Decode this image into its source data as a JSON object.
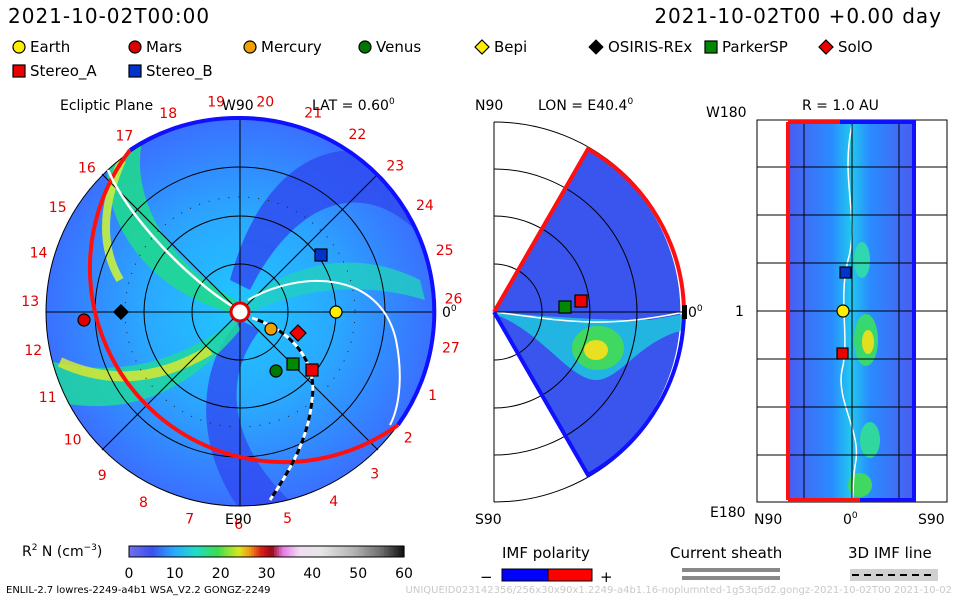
{
  "header": {
    "datetime": "2021-10-02T00:00",
    "datetime_offset": "2021-10-02T00 +0.00 day"
  },
  "legend": {
    "items": [
      {
        "name": "Earth",
        "marker": "circle",
        "color": "#ffee00"
      },
      {
        "name": "Mars",
        "marker": "circle",
        "color": "#dd0000"
      },
      {
        "name": "Mercury",
        "marker": "circle",
        "color": "#f0a000"
      },
      {
        "name": "Venus",
        "marker": "circle",
        "color": "#007700"
      },
      {
        "name": "Bepi",
        "marker": "diamond",
        "color": "#ffee00"
      },
      {
        "name": "OSIRIS-REx",
        "marker": "diamond",
        "color": "#000000"
      },
      {
        "name": "ParkerSP",
        "marker": "square",
        "color": "#008800"
      },
      {
        "name": "SolO",
        "marker": "diamond",
        "color": "#ee0000"
      },
      {
        "name": "Stereo_A",
        "marker": "square",
        "color": "#ee0000"
      },
      {
        "name": "Stereo_B",
        "marker": "square",
        "color": "#0033cc"
      }
    ]
  },
  "ecliptic": {
    "title": "Ecliptic Plane",
    "lat_label": "LAT = 0.60",
    "lat_sup": "0",
    "top_label": "W90",
    "bottom_label": "E90",
    "right_label": "0",
    "right_sup": "0",
    "carrington_numbers": [
      "19",
      "20",
      "21",
      "22",
      "23",
      "24",
      "25",
      "26",
      "27",
      "1",
      "2",
      "3",
      "4",
      "5",
      "6",
      "7",
      "8",
      "9",
      "10",
      "11",
      "12",
      "13",
      "14",
      "15",
      "16",
      "17",
      "18"
    ]
  },
  "meridional": {
    "lon_label": "LON = E40.4",
    "lon_sup": "0",
    "top_label": "N90",
    "bottom_label": "S90",
    "right_label": "0",
    "right_sup": "0"
  },
  "radial": {
    "r_label": "R = 1.0 AU",
    "top_label": "W180",
    "bottom_label": "E180",
    "mid_label": "1",
    "x_left": "N90",
    "x_mid": "0",
    "x_mid_sup": "0",
    "x_right": "S90"
  },
  "colorbar": {
    "label_main": "R",
    "label_sup": "2",
    "label_rest": " N (cm",
    "label_exp": "−3",
    "label_close": ")",
    "ticks": [
      "0",
      "10",
      "20",
      "30",
      "40",
      "50",
      "60"
    ]
  },
  "imf": {
    "title": "IMF polarity",
    "minus": "−",
    "plus": "+",
    "negative_color": "#0000ff",
    "positive_color": "#ff0000"
  },
  "sheath": {
    "title": "Current sheath"
  },
  "imf3d": {
    "title": "3D IMF line"
  },
  "footer": {
    "left": "ENLIL-2.7 lowres-2249-a4b1 WSA_V2.2 GONGZ-2249",
    "right": "UNIQUEID023142356/256x30x90x1.2249-a4b1.16-noplumnted-1g53q5d2.gongz-2021-10-02T00     2021-10-02"
  },
  "chart_data": [
    {
      "type": "heatmap",
      "panel": "ecliptic-plane",
      "title": "Ecliptic Plane",
      "subtitle": "LAT = 0.60°",
      "bodies_au_angle_deg": [
        {
          "name": "Earth",
          "r": 1.0,
          "angle": 0
        },
        {
          "name": "Mars",
          "r": 1.65,
          "angle": 180
        },
        {
          "name": "Mercury",
          "r": 0.33,
          "angle": -40
        },
        {
          "name": "Venus",
          "r": 0.71,
          "angle": -63
        },
        {
          "name": "Bepi",
          "r": 0.33,
          "angle": -40
        },
        {
          "name": "OSIRIS-REx",
          "r": 1.2,
          "angle": 180
        },
        {
          "name": "ParkerSP",
          "r": 0.7,
          "angle": -53
        },
        {
          "name": "SolO",
          "r": 0.6,
          "angle": -20
        },
        {
          "name": "Stereo_A",
          "r": 0.88,
          "angle": -42
        },
        {
          "name": "Stereo_B",
          "r": 0.9,
          "angle": 39
        }
      ],
      "colorbar_range": [
        0,
        60
      ]
    },
    {
      "type": "heatmap",
      "panel": "meridional-plane",
      "subtitle": "LON = E40.4°",
      "lat_range_deg": [
        -60,
        60
      ]
    },
    {
      "type": "heatmap",
      "panel": "radial-1au",
      "subtitle": "R = 1.0 AU",
      "x_ticks": [
        "N90",
        "0°",
        "S90"
      ],
      "y_ticks": [
        "W180",
        "1",
        "E180"
      ]
    }
  ]
}
